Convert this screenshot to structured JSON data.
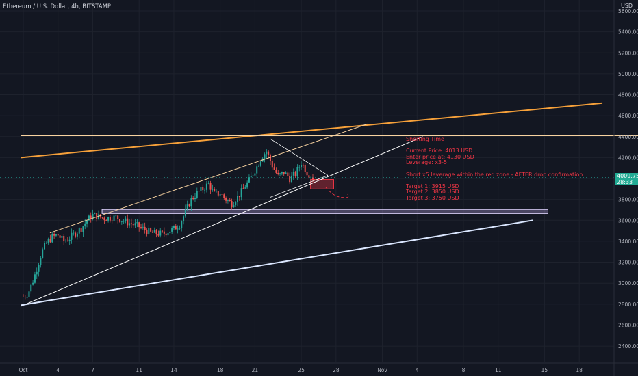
{
  "header": {
    "title": "Ethereum / U.S. Dollar, 4h, BITSTAMP",
    "currency": "USD"
  },
  "last_price": {
    "value": "4009.75",
    "countdown": "28:33",
    "color": "#22ab94"
  },
  "annotation": {
    "lines": [
      "Shorting Time",
      "",
      "Current Price: 4013 USD",
      "Enter price at: 4130 USD",
      "Leverage: x3-5",
      "",
      "Short x5 leverage within the red zone - AFTER drop confirmation.",
      "",
      "Target 1: 3915 USD",
      "Target 2: 3850 USD",
      "Target 3: 3750 USD"
    ],
    "color": "#f23645"
  },
  "colors": {
    "background": "#131722",
    "grid": "#1e222d",
    "up": "#26a69a",
    "down": "#ef5350",
    "trend_white": "#ffffff",
    "trend_orange": "#f7a13a",
    "trend_light_orange": "#f8d3a0",
    "zone": "#b39ddb",
    "red_zone": "#f23645"
  },
  "chart_data": {
    "type": "candlestick",
    "title": "Ethereum / U.S. Dollar, 4h, BITSTAMP",
    "x_ticks": [
      "Oct",
      "4",
      "7",
      "11",
      "14",
      "18",
      "21",
      "25",
      "28",
      "Nov",
      "4",
      "8",
      "11",
      "15",
      "18"
    ],
    "y_ticks": [
      "5600.00",
      "5400.00",
      "5200.00",
      "5000.00",
      "4800.00",
      "4600.00",
      "4400.00",
      "4200.00",
      "4000.00",
      "3800.00",
      "3600.00",
      "3400.00",
      "3200.00",
      "3000.00",
      "2800.00",
      "2600.00",
      "2400.00"
    ],
    "ylim": [
      2300,
      5700
    ],
    "grid": true,
    "last_price": 4009.75,
    "candle_path": [
      [
        0,
        2870
      ],
      [
        0.4,
        2900
      ],
      [
        0.8,
        3010
      ],
      [
        1.2,
        3150
      ],
      [
        1.6,
        3300
      ],
      [
        2.0,
        3380
      ],
      [
        2.5,
        3440
      ],
      [
        3.0,
        3460
      ],
      [
        3.5,
        3400
      ],
      [
        4.0,
        3430
      ],
      [
        4.5,
        3480
      ],
      [
        5.0,
        3520
      ],
      [
        5.5,
        3600
      ],
      [
        6.0,
        3650
      ],
      [
        7.0,
        3620
      ],
      [
        8.0,
        3630
      ],
      [
        9.0,
        3580
      ],
      [
        10.0,
        3540
      ],
      [
        11.0,
        3480
      ],
      [
        12.0,
        3470
      ],
      [
        13.0,
        3520
      ],
      [
        13.5,
        3560
      ],
      [
        14.0,
        3680
      ],
      [
        14.5,
        3800
      ],
      [
        15.0,
        3860
      ],
      [
        15.5,
        3900
      ],
      [
        16.0,
        3950
      ],
      [
        16.5,
        3850
      ],
      [
        17.0,
        3860
      ],
      [
        17.5,
        3800
      ],
      [
        18.0,
        3760
      ],
      [
        18.5,
        3820
      ],
      [
        19.0,
        3900
      ],
      [
        19.5,
        3980
      ],
      [
        20.0,
        4080
      ],
      [
        20.3,
        4140
      ],
      [
        20.6,
        4210
      ],
      [
        21.0,
        4260
      ],
      [
        21.5,
        4120
      ],
      [
        22.0,
        4020
      ],
      [
        22.5,
        4060
      ],
      [
        23.0,
        4000
      ],
      [
        23.5,
        4040
      ],
      [
        24.0,
        4150
      ],
      [
        24.5,
        4060
      ],
      [
        25.0,
        4010
      ]
    ],
    "trendlines": [
      {
        "name": "upper-channel",
        "from": [
          -0.2,
          4200
        ],
        "to": [
          50,
          4720
        ],
        "color": "#f7a13a",
        "width": 2
      },
      {
        "name": "resistance-4400",
        "from": [
          -0.2,
          4410
        ],
        "to": [
          56,
          4410
        ],
        "color": "#f8d3a0",
        "width": 1.5
      },
      {
        "name": "rising-wedge-top",
        "from": [
          2.3,
          3480
        ],
        "to": [
          29.7,
          4520
        ],
        "color": "#f8d3a0",
        "width": 1
      },
      {
        "name": "rising-wedge-bottom",
        "from": [
          -0.2,
          2780
        ],
        "to": [
          34.5,
          4400
        ],
        "color": "#ffffff",
        "width": 1
      },
      {
        "name": "long-support",
        "from": [
          -0.2,
          2790
        ],
        "to": [
          44.0,
          3600
        ],
        "color": "#dbe7ff",
        "width": 2
      },
      {
        "name": "pennant-top",
        "from": [
          21.3,
          4380
        ],
        "to": [
          26.3,
          4030
        ],
        "color": "#ffffff",
        "width": 0.8
      },
      {
        "name": "pennant-bottom",
        "from": [
          21.3,
          3820
        ],
        "to": [
          26.3,
          4030
        ],
        "color": "#ffffff",
        "width": 0.8
      }
    ],
    "zones": [
      {
        "name": "support-zone",
        "x": [
          6.8,
          45.3
        ],
        "y": [
          3665,
          3705
        ],
        "color": "#b39ddb"
      },
      {
        "name": "red-short-zone",
        "x": [
          24.8,
          26.8
        ],
        "y": [
          3900,
          3990
        ],
        "color": "#f23645"
      }
    ],
    "projection": {
      "points": [
        [
          26.1,
          3920
        ],
        [
          26.7,
          3830
        ],
        [
          27.5,
          3820
        ],
        [
          28.0,
          3850
        ]
      ],
      "color": "#f23645"
    }
  }
}
